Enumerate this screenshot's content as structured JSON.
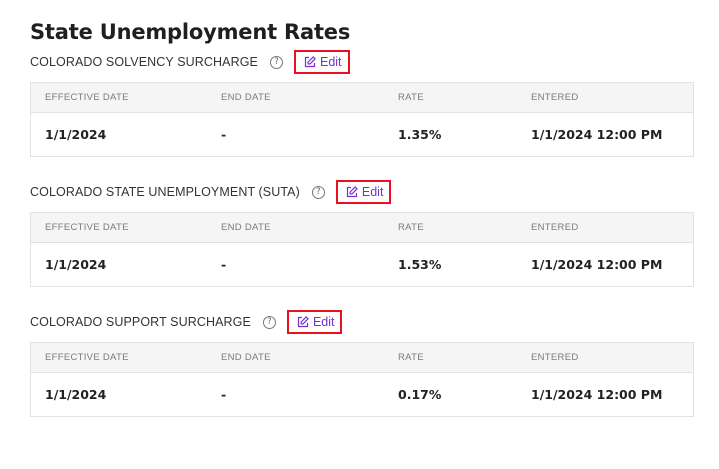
{
  "page": {
    "title": "State Unemployment Rates"
  },
  "columns": [
    "EFFECTIVE DATE",
    "END DATE",
    "RATE",
    "ENTERED"
  ],
  "accent_color": "#7b2fd1",
  "highlight_color": "#e8101f",
  "sections": [
    {
      "label": "COLORADO SOLVENCY SURCHARGE",
      "help_icon": "question-circle-icon",
      "edit_label": "Edit",
      "rows": [
        {
          "effective_date": "1/1/2024",
          "end_date": "-",
          "rate": "1.35%",
          "entered": "1/1/2024 12:00 PM"
        }
      ]
    },
    {
      "label": "COLORADO STATE UNEMPLOYMENT (SUTA)",
      "help_icon": "question-circle-icon",
      "edit_label": "Edit",
      "rows": [
        {
          "effective_date": "1/1/2024",
          "end_date": "-",
          "rate": "1.53%",
          "entered": "1/1/2024 12:00 PM"
        }
      ]
    },
    {
      "label": "COLORADO SUPPORT SURCHARGE",
      "help_icon": "question-circle-icon",
      "edit_label": "Edit",
      "rows": [
        {
          "effective_date": "1/1/2024",
          "end_date": "-",
          "rate": "0.17%",
          "entered": "1/1/2024 12:00 PM"
        }
      ]
    }
  ]
}
